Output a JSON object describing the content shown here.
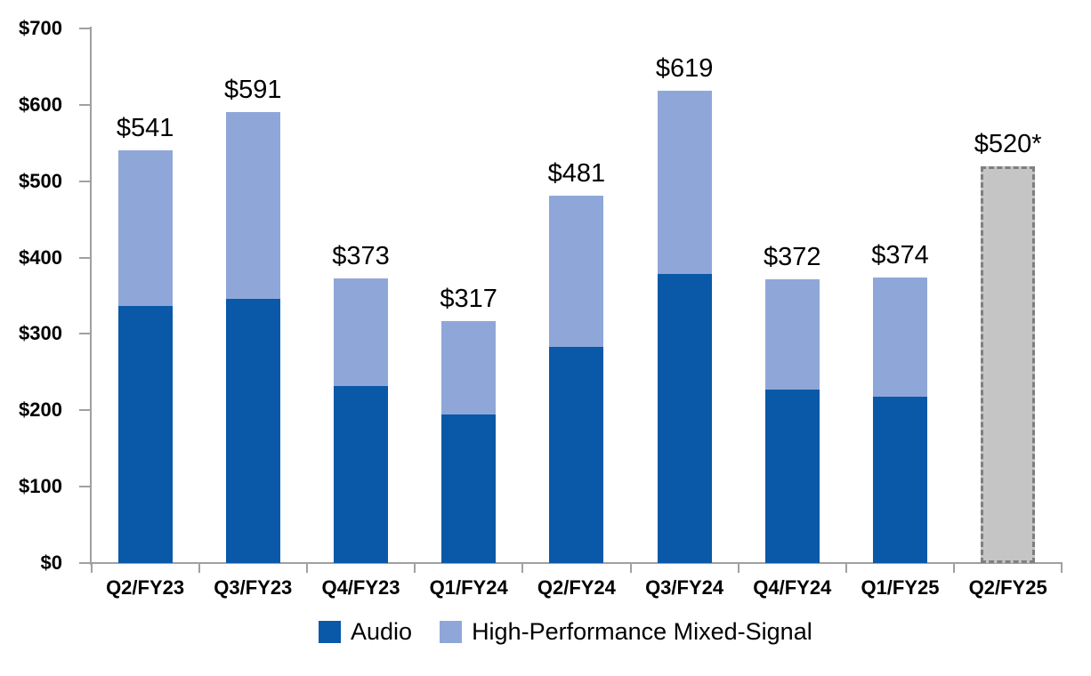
{
  "chart_data": {
    "type": "bar",
    "stacked": true,
    "title": "",
    "xlabel": "",
    "ylabel": "",
    "ylim": [
      0,
      700
    ],
    "ytick_interval": 100,
    "ytick_labels": [
      "$0",
      "$100",
      "$200",
      "$300",
      "$400",
      "$500",
      "$600",
      "$700"
    ],
    "grid": false,
    "legend_position": "bottom",
    "categories": [
      "Q2/FY23",
      "Q3/FY23",
      "Q4/FY23",
      "Q1/FY24",
      "Q2/FY24",
      "Q3/FY24",
      "Q4/FY24",
      "Q1/FY25",
      "Q2/FY25"
    ],
    "series": [
      {
        "name": "Audio",
        "color": "#0a58a8",
        "values": [
          337,
          346,
          232,
          195,
          283,
          379,
          227,
          218,
          null
        ]
      },
      {
        "name": "High-Performance Mixed-Signal",
        "color": "#8fa7d8",
        "values": [
          204,
          245,
          141,
          122,
          198,
          240,
          145,
          156,
          null
        ]
      }
    ],
    "totals": [
      541,
      591,
      373,
      317,
      481,
      619,
      372,
      374,
      520
    ],
    "total_labels": [
      "$541",
      "$591",
      "$373",
      "$317",
      "$481",
      "$619",
      "$372",
      "$374",
      "$520*"
    ],
    "projection": {
      "category": "Q2/FY25",
      "value": 520,
      "label": "$520*",
      "fill_color": "#c5c5c5",
      "border_color": "#7f7f7f",
      "border_style": "dashed"
    },
    "colors": {
      "axis": "#a0a0a0",
      "text": "#000000",
      "background": "#ffffff"
    }
  }
}
